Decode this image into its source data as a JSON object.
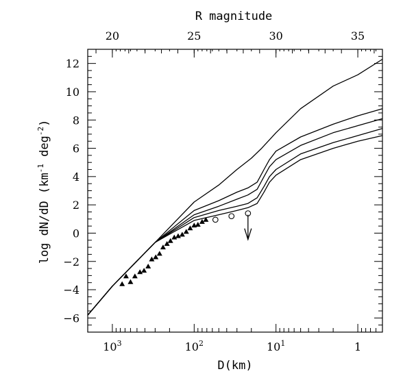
{
  "chart_data": {
    "type": "line",
    "title": "",
    "top_axis": {
      "label": "R magnitude",
      "ticks": [
        20,
        25,
        30,
        35
      ],
      "tick_labels": [
        "20",
        "25",
        "30",
        "35"
      ]
    },
    "x_axis": {
      "label": "D(km)",
      "scale": "log",
      "direction": "decreasing",
      "range": [
        2000,
        0.5
      ],
      "tick_labels": [
        {
          "text": "10",
          "exp": "3",
          "value": 1000
        },
        {
          "text": "10",
          "exp": "2",
          "value": 100
        },
        {
          "text": "10",
          "exp": "1",
          "value": 10
        },
        {
          "text": "1",
          "exp": "",
          "value": 1
        }
      ]
    },
    "y_axis": {
      "label_main": "log dN/dD (km",
      "label_sup1": "-1",
      "label_mid": " deg",
      "label_sup2": "-2",
      "label_end": ")",
      "range": [
        -7,
        13
      ],
      "ticks": [
        -6,
        -4,
        -2,
        0,
        2,
        4,
        6,
        8,
        10,
        12
      ],
      "tick_labels": [
        "−6",
        "−4",
        "−2",
        "0",
        "2",
        "4",
        "6",
        "8",
        "10",
        "12"
      ]
    },
    "series": [
      {
        "kind": "curve",
        "points": [
          [
            2000,
            -5.8
          ],
          [
            1000,
            -3.75
          ],
          [
            300,
            -0.65
          ],
          [
            100,
            2.2
          ],
          [
            50,
            3.4
          ],
          [
            30,
            4.5
          ],
          [
            20,
            5.3
          ],
          [
            15,
            6.0
          ],
          [
            10,
            7.1
          ],
          [
            5,
            8.8
          ],
          [
            2,
            10.4
          ],
          [
            1,
            11.2
          ],
          [
            0.5,
            12.3
          ]
        ]
      },
      {
        "kind": "curve",
        "points": [
          [
            2000,
            -5.8
          ],
          [
            1000,
            -3.75
          ],
          [
            300,
            -0.65
          ],
          [
            100,
            1.6
          ],
          [
            50,
            2.3
          ],
          [
            30,
            2.9
          ],
          [
            22,
            3.2
          ],
          [
            17,
            3.6
          ],
          [
            14,
            4.5
          ],
          [
            12,
            5.2
          ],
          [
            10,
            5.8
          ],
          [
            5,
            6.8
          ],
          [
            2,
            7.7
          ],
          [
            1,
            8.3
          ],
          [
            0.5,
            8.8
          ]
        ]
      },
      {
        "kind": "curve",
        "points": [
          [
            2000,
            -5.8
          ],
          [
            1000,
            -3.75
          ],
          [
            300,
            -0.65
          ],
          [
            100,
            1.3
          ],
          [
            50,
            1.9
          ],
          [
            30,
            2.4
          ],
          [
            22,
            2.7
          ],
          [
            17,
            3.1
          ],
          [
            14,
            4.0
          ],
          [
            12,
            4.7
          ],
          [
            10,
            5.2
          ],
          [
            5,
            6.2
          ],
          [
            2,
            7.1
          ],
          [
            1,
            7.6
          ],
          [
            0.5,
            8.1
          ]
        ]
      },
      {
        "kind": "curve",
        "points": [
          [
            2000,
            -5.8
          ],
          [
            1000,
            -3.75
          ],
          [
            300,
            -0.65
          ],
          [
            100,
            1.1
          ],
          [
            50,
            1.6
          ],
          [
            30,
            1.9
          ],
          [
            22,
            2.1
          ],
          [
            17,
            2.5
          ],
          [
            14,
            3.3
          ],
          [
            12,
            4.0
          ],
          [
            10,
            4.5
          ],
          [
            5,
            5.6
          ],
          [
            2,
            6.4
          ],
          [
            1,
            6.9
          ],
          [
            0.5,
            7.4
          ]
        ]
      },
      {
        "kind": "curve",
        "points": [
          [
            2000,
            -5.8
          ],
          [
            1000,
            -3.75
          ],
          [
            300,
            -0.65
          ],
          [
            100,
            0.9
          ],
          [
            50,
            1.3
          ],
          [
            30,
            1.6
          ],
          [
            22,
            1.8
          ],
          [
            17,
            2.1
          ],
          [
            14,
            2.9
          ],
          [
            12,
            3.6
          ],
          [
            10,
            4.1
          ],
          [
            5,
            5.2
          ],
          [
            2,
            6.0
          ],
          [
            1,
            6.5
          ],
          [
            0.5,
            6.9
          ]
        ]
      },
      {
        "kind": "triangles",
        "points": [
          [
            760,
            -3.6
          ],
          [
            680,
            -3.05
          ],
          [
            600,
            -3.45
          ],
          [
            530,
            -3.05
          ],
          [
            460,
            -2.75
          ],
          [
            410,
            -2.65
          ],
          [
            365,
            -2.35
          ],
          [
            330,
            -1.85
          ],
          [
            295,
            -1.7
          ],
          [
            265,
            -1.45
          ],
          [
            240,
            -1.0
          ],
          [
            215,
            -0.75
          ],
          [
            195,
            -0.55
          ],
          [
            175,
            -0.3
          ],
          [
            157,
            -0.2
          ],
          [
            140,
            -0.1
          ],
          [
            125,
            0.1
          ],
          [
            112,
            0.35
          ],
          [
            100,
            0.55
          ],
          [
            90,
            0.6
          ],
          [
            80,
            0.8
          ],
          [
            72,
            0.95
          ]
        ]
      },
      {
        "kind": "circles",
        "points": [
          [
            55,
            0.95
          ],
          [
            35,
            1.2
          ],
          [
            22,
            1.4
          ]
        ]
      }
    ],
    "upper_limit_arrow": {
      "x": 22,
      "y_from": 1.3,
      "y_to": -0.45
    },
    "grid": false,
    "legend": "none"
  }
}
